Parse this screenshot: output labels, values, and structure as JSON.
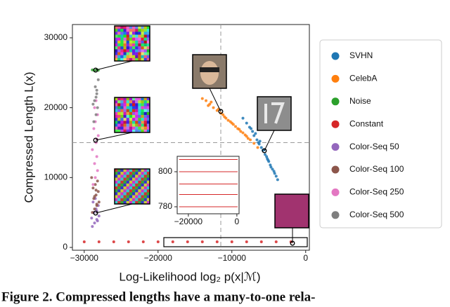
{
  "chart_data": [
    {
      "type": "scatter",
      "xlabel": "Log-Likelihood log₂ p(x|ℳ)",
      "ylabel": "Compressed Length L(x)",
      "caption": "Figure 2.  Compressed lengths have a many-to-one rela-",
      "xlim": [
        -31600,
        500
      ],
      "ylim": [
        -400,
        31900
      ],
      "xticks": [
        {
          "value": -30000,
          "label": "−30000"
        },
        {
          "value": -20000,
          "label": "−20000"
        },
        {
          "value": -10000,
          "label": "−10000"
        },
        0
      ],
      "yticks": [
        0,
        10000,
        20000,
        30000
      ],
      "vline": -11500,
      "hline": 15000,
      "legend": "right",
      "series": [
        {
          "name": "SVHN",
          "color": "#1f77b4",
          "x": [
            -8500,
            -8000,
            -7600,
            -7200,
            -7000,
            -6600,
            -6300,
            -6000,
            -5800,
            -5500,
            -5200,
            -5000,
            -4800,
            -4500,
            -4200,
            -4000,
            -3800,
            -6800,
            -6200,
            -5600,
            -5300,
            -4700,
            -7400,
            -6400,
            -5100,
            -4300
          ],
          "values": [
            18500,
            17800,
            17200,
            16600,
            16000,
            15400,
            14800,
            14300,
            13900,
            13300,
            12700,
            12300,
            11800,
            11200,
            10600,
            10200,
            9700,
            16300,
            15200,
            14000,
            13000,
            11500,
            17000,
            15000,
            12500,
            10900
          ]
        },
        {
          "name": "CelebA",
          "color": "#ff7f0e",
          "x": [
            -14000,
            -13500,
            -13000,
            -12500,
            -12000,
            -11500,
            -11000,
            -10500,
            -10000,
            -9500,
            -9000,
            -8500,
            -8000,
            -7500,
            -7000,
            -12800,
            -11800,
            -10800,
            -9800,
            -8800,
            -7800,
            -6500,
            -13200,
            -11200,
            -10200,
            -9200,
            -8200
          ],
          "values": [
            21300,
            21000,
            20500,
            20000,
            19600,
            19200,
            18700,
            18200,
            17800,
            17300,
            16900,
            16400,
            15900,
            15400,
            14900,
            20800,
            19800,
            18500,
            17600,
            16600,
            15600,
            14300,
            20300,
            19000,
            18000,
            17000,
            16100
          ]
        },
        {
          "name": "Noise",
          "color": "#2ca02c",
          "x": [
            -28900,
            -28600,
            -28300,
            -28100
          ],
          "values": [
            25400,
            25300,
            25450,
            25350
          ]
        },
        {
          "name": "Constant",
          "color": "#d62728",
          "x": [
            -30000,
            -28000,
            -26000,
            -24000,
            -22000,
            -20000,
            -18000,
            -16000,
            -14000,
            -12000,
            -10000,
            -8000,
            -6000,
            -4000,
            -2000
          ],
          "values": [
            800,
            800,
            800,
            800,
            800,
            800,
            800,
            800,
            800,
            800,
            800,
            800,
            800,
            800,
            800
          ]
        },
        {
          "name": "Color-Seq 50",
          "color": "#9467bd",
          "x": [
            -28900,
            -28600,
            -28300,
            -28000,
            -28700,
            -28400,
            -28100,
            -28800,
            -28500,
            -28200,
            -29000,
            -28300
          ],
          "values": [
            3000,
            3500,
            4000,
            4500,
            5000,
            5500,
            6000,
            6500,
            7000,
            3800,
            4200,
            5200
          ]
        },
        {
          "name": "Color-Seq 100",
          "color": "#8c564b",
          "x": [
            -28900,
            -28600,
            -28300,
            -28000,
            -28700,
            -28400,
            -28100,
            -28800,
            -28500,
            -28200,
            -29000,
            -28300,
            -28600,
            -28400
          ],
          "values": [
            5000,
            5500,
            6000,
            6500,
            7000,
            7500,
            8000,
            8500,
            9000,
            9500,
            10000,
            6200,
            7300,
            8200
          ]
        },
        {
          "name": "Color-Seq 250",
          "color": "#e377c2",
          "x": [
            -28800,
            -28500,
            -28200,
            -28600,
            -28300,
            -28900,
            -28400,
            -28100,
            -28700,
            -28500,
            -28200,
            -28600,
            -28400,
            -28300
          ],
          "values": [
            9000,
            10000,
            11000,
            12000,
            13000,
            14000,
            15000,
            16000,
            17000,
            18000,
            19000,
            20000,
            21000,
            15500
          ]
        },
        {
          "name": "Color-Seq 500",
          "color": "#7f7f7f",
          "x": [
            -28700,
            -28400,
            -28200,
            -28600,
            -28300,
            -28500,
            -28100,
            -28800,
            -28400,
            -28300
          ],
          "values": [
            18000,
            19000,
            20000,
            21000,
            22000,
            23000,
            24000,
            20500,
            21500,
            22500
          ]
        }
      ]
    },
    {
      "type": "line",
      "xlim": [
        -24600,
        900
      ],
      "ylim": [
        776,
        808.8
      ],
      "xticks": [
        {
          "value": -20000,
          "label": "−20000"
        },
        0
      ],
      "yticks": [
        800,
        780
      ],
      "series": [
        {
          "color": "#d62728",
          "x": [
            -23800,
            300
          ],
          "values": [
            807,
            807
          ]
        },
        {
          "color": "#d62728",
          "x": [
            -23800,
            300
          ],
          "values": [
            800,
            800
          ]
        },
        {
          "color": "#d62728",
          "x": [
            -23800,
            300
          ],
          "values": [
            793,
            793
          ]
        },
        {
          "color": "#d62728",
          "x": [
            -23800,
            300
          ],
          "values": [
            787,
            787
          ]
        },
        {
          "color": "#d62728",
          "x": [
            -23800,
            300
          ],
          "values": [
            780,
            780
          ]
        }
      ]
    }
  ]
}
